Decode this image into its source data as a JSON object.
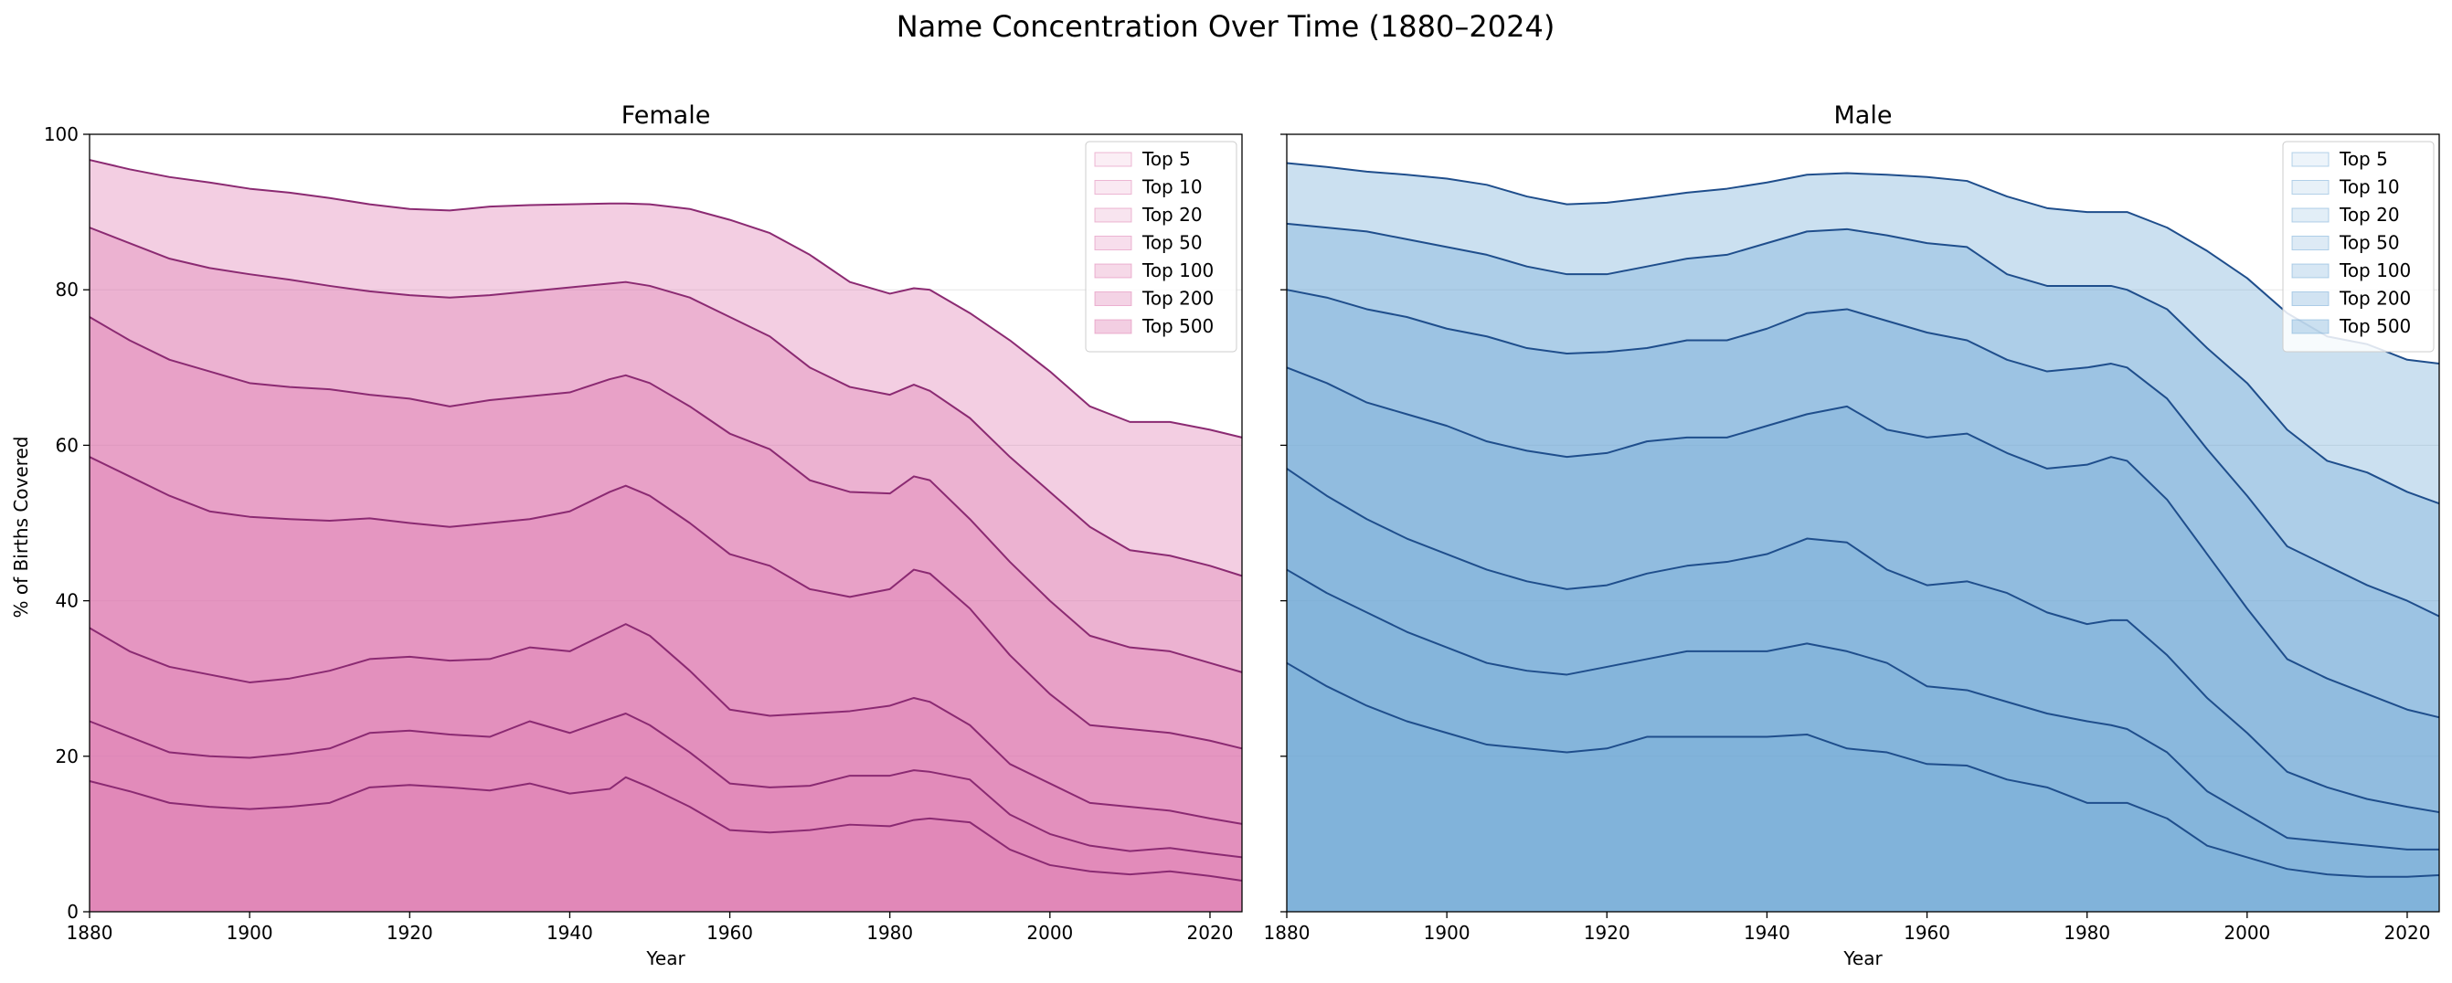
{
  "chart_data": {
    "type": "area",
    "title": "Name Concentration Over Time (1880–2024)",
    "ylabel": "% of Births Covered",
    "xlabel": "Year",
    "xlim": [
      1880,
      2024
    ],
    "ylim": [
      0,
      100
    ],
    "x_ticks": [
      "1880",
      "1900",
      "1920",
      "1940",
      "1960",
      "1980",
      "2000",
      "2020"
    ],
    "y_ticks": [
      "0",
      "20",
      "40",
      "60",
      "80",
      "100"
    ],
    "grid": "horizontal",
    "legend_position": "top-right",
    "stacked": false,
    "panels": [
      {
        "title": "Female",
        "line_color": "#8b2a72",
        "fill_color": "#de77ae",
        "x": [
          1880,
          1885,
          1890,
          1895,
          1900,
          1905,
          1910,
          1915,
          1920,
          1925,
          1930,
          1935,
          1940,
          1945,
          1947,
          1950,
          1955,
          1960,
          1965,
          1970,
          1975,
          1980,
          1983,
          1985,
          1990,
          1995,
          2000,
          2005,
          2010,
          2015,
          2020,
          2024
        ],
        "series": [
          {
            "name": "Top 5",
            "values": [
              16.8,
              15.5,
              14.0,
              13.5,
              13.2,
              13.5,
              14.0,
              16.0,
              16.3,
              16.0,
              15.6,
              16.5,
              15.2,
              15.8,
              17.3,
              16.0,
              13.5,
              10.5,
              10.2,
              10.5,
              11.2,
              11.0,
              11.8,
              12.0,
              11.5,
              8.0,
              6.0,
              5.2,
              4.8,
              5.2,
              4.6,
              4.0
            ]
          },
          {
            "name": "Top 10",
            "values": [
              24.5,
              22.5,
              20.5,
              20.0,
              19.8,
              20.3,
              21.0,
              23.0,
              23.3,
              22.8,
              22.5,
              24.5,
              23.0,
              24.8,
              25.5,
              24.0,
              20.5,
              16.5,
              16.0,
              16.2,
              17.5,
              17.5,
              18.2,
              18.0,
              17.0,
              12.5,
              10.0,
              8.5,
              7.8,
              8.2,
              7.5,
              7.0
            ]
          },
          {
            "name": "Top 20",
            "values": [
              36.5,
              33.5,
              31.5,
              30.5,
              29.5,
              30.0,
              31.0,
              32.5,
              32.8,
              32.3,
              32.5,
              34.0,
              33.5,
              36.0,
              37.0,
              35.5,
              31.0,
              26.0,
              25.2,
              25.5,
              25.8,
              26.5,
              27.5,
              27.0,
              24.0,
              19.0,
              16.5,
              14.0,
              13.5,
              13.0,
              12.0,
              11.3
            ]
          },
          {
            "name": "Top 50",
            "values": [
              58.5,
              56.0,
              53.5,
              51.5,
              50.8,
              50.5,
              50.3,
              50.6,
              50.0,
              49.5,
              50.0,
              50.5,
              51.5,
              54.0,
              54.8,
              53.5,
              50.0,
              46.0,
              44.5,
              41.5,
              40.5,
              41.5,
              44.0,
              43.5,
              39.0,
              33.0,
              28.0,
              24.0,
              23.5,
              23.0,
              22.0,
              21.0
            ]
          },
          {
            "name": "Top 100",
            "values": [
              76.5,
              73.5,
              71.0,
              69.5,
              68.0,
              67.5,
              67.2,
              66.5,
              66.0,
              65.0,
              65.8,
              66.3,
              66.8,
              68.5,
              69.0,
              68.0,
              65.0,
              61.5,
              59.5,
              55.5,
              54.0,
              53.8,
              56.0,
              55.5,
              50.5,
              45.0,
              40.0,
              35.5,
              34.0,
              33.5,
              32.0,
              30.8
            ]
          },
          {
            "name": "Top 200",
            "values": [
              88.0,
              86.0,
              84.0,
              82.8,
              82.0,
              81.3,
              80.5,
              79.8,
              79.3,
              79.0,
              79.3,
              79.8,
              80.3,
              80.8,
              81.0,
              80.5,
              79.0,
              76.5,
              74.0,
              70.0,
              67.5,
              66.5,
              67.8,
              67.0,
              63.5,
              58.5,
              54.0,
              49.5,
              46.5,
              45.8,
              44.5,
              43.2
            ]
          },
          {
            "name": "Top 500",
            "values": [
              96.7,
              95.5,
              94.5,
              93.8,
              93.0,
              92.5,
              91.8,
              91.0,
              90.4,
              90.2,
              90.7,
              90.9,
              91.0,
              91.1,
              91.1,
              91.0,
              90.4,
              89.0,
              87.3,
              84.5,
              81.0,
              79.5,
              80.2,
              80.0,
              77.0,
              73.5,
              69.5,
              65.0,
              63.0,
              63.0,
              62.0,
              61.0
            ]
          }
        ]
      },
      {
        "title": "Male",
        "line_color": "#1f4e8c",
        "fill_color": "#6fa8d6",
        "x": [
          1880,
          1885,
          1890,
          1895,
          1900,
          1905,
          1910,
          1915,
          1920,
          1925,
          1930,
          1935,
          1940,
          1945,
          1950,
          1955,
          1960,
          1965,
          1970,
          1975,
          1980,
          1983,
          1985,
          1990,
          1995,
          2000,
          2005,
          2010,
          2015,
          2020,
          2024
        ],
        "series": [
          {
            "name": "Top 5",
            "values": [
              32.0,
              29.0,
              26.5,
              24.5,
              23.0,
              21.5,
              21.0,
              20.5,
              21.0,
              22.5,
              22.5,
              22.5,
              22.5,
              22.8,
              21.0,
              20.5,
              19.0,
              18.8,
              17.0,
              16.0,
              14.0,
              14.0,
              14.0,
              12.0,
              8.5,
              7.0,
              5.5,
              4.8,
              4.5,
              4.5,
              4.7
            ]
          },
          {
            "name": "Top 10",
            "values": [
              44.0,
              41.0,
              38.5,
              36.0,
              34.0,
              32.0,
              31.0,
              30.5,
              31.5,
              32.5,
              33.5,
              33.5,
              33.5,
              34.5,
              33.5,
              32.0,
              29.0,
              28.5,
              27.0,
              25.5,
              24.5,
              24.0,
              23.5,
              20.5,
              15.5,
              12.5,
              9.5,
              9.0,
              8.5,
              8.0,
              8.0
            ]
          },
          {
            "name": "Top 20",
            "values": [
              57.0,
              53.5,
              50.5,
              48.0,
              46.0,
              44.0,
              42.5,
              41.5,
              42.0,
              43.5,
              44.5,
              45.0,
              46.0,
              48.0,
              47.5,
              44.0,
              42.0,
              42.5,
              41.0,
              38.5,
              37.0,
              37.5,
              37.5,
              33.0,
              27.5,
              23.0,
              18.0,
              16.0,
              14.5,
              13.5,
              12.8
            ]
          },
          {
            "name": "Top 50",
            "values": [
              70.0,
              68.0,
              65.5,
              64.0,
              62.5,
              60.5,
              59.3,
              58.5,
              59.0,
              60.5,
              61.0,
              61.0,
              62.5,
              64.0,
              65.0,
              62.0,
              61.0,
              61.5,
              59.0,
              57.0,
              57.5,
              58.5,
              58.0,
              53.0,
              46.0,
              39.0,
              32.5,
              30.0,
              28.0,
              26.0,
              25.0
            ]
          },
          {
            "name": "Top 100",
            "values": [
              80.0,
              79.0,
              77.5,
              76.5,
              75.0,
              74.0,
              72.5,
              71.8,
              72.0,
              72.5,
              73.5,
              73.5,
              75.0,
              77.0,
              77.5,
              76.0,
              74.5,
              73.5,
              71.0,
              69.5,
              70.0,
              70.5,
              70.0,
              66.0,
              59.5,
              53.5,
              47.0,
              44.5,
              42.0,
              40.0,
              38.0
            ]
          },
          {
            "name": "Top 200",
            "values": [
              88.5,
              88.0,
              87.5,
              86.5,
              85.5,
              84.5,
              83.0,
              82.0,
              82.0,
              83.0,
              84.0,
              84.5,
              86.0,
              87.5,
              87.8,
              87.0,
              86.0,
              85.5,
              82.0,
              80.5,
              80.5,
              80.5,
              80.0,
              77.5,
              72.5,
              68.0,
              62.0,
              58.0,
              56.5,
              54.0,
              52.5
            ]
          },
          {
            "name": "Top 500",
            "values": [
              96.3,
              95.8,
              95.2,
              94.8,
              94.3,
              93.5,
              92.0,
              91.0,
              91.2,
              91.8,
              92.5,
              93.0,
              93.8,
              94.8,
              95.0,
              94.8,
              94.5,
              94.0,
              92.0,
              90.5,
              90.0,
              90.0,
              90.0,
              88.0,
              85.0,
              81.5,
              77.0,
              74.0,
              73.0,
              71.0,
              70.5
            ]
          }
        ]
      }
    ]
  }
}
